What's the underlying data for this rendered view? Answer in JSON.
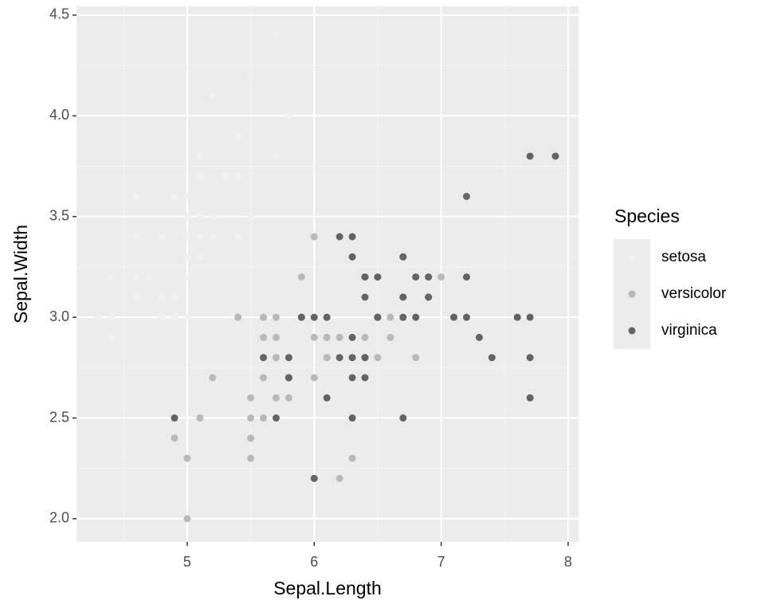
{
  "chart_data": {
    "type": "scatter",
    "x_label": "Sepal.Length",
    "y_label": "Sepal.Width",
    "legend_title": "Species",
    "legend_position": "right",
    "grid": true,
    "xlim": [
      4.128,
      8.082
    ],
    "ylim": [
      1.885,
      4.5435
    ],
    "xticks": [
      5,
      6,
      7,
      8
    ],
    "yticks": [
      {
        "value": 2,
        "label": "2.0"
      },
      2.5,
      {
        "value": 3,
        "label": "3.0"
      },
      3.5,
      {
        "value": 4,
        "label": "4.0"
      },
      4.5
    ],
    "series": [
      {
        "name": "setosa",
        "color": "#f0f0f0",
        "x": [
          5.1,
          4.9,
          4.7,
          4.6,
          5.0,
          5.4,
          4.6,
          5.0,
          4.4,
          4.9,
          5.4,
          4.8,
          4.8,
          4.3,
          5.8,
          5.7,
          5.4,
          5.1,
          5.7,
          5.1,
          5.4,
          5.1,
          4.6,
          5.1,
          4.8,
          5.0,
          5.0,
          5.2,
          5.2,
          4.7,
          4.8,
          5.4,
          5.2,
          5.5,
          4.9,
          5.0,
          5.5,
          4.9,
          4.4,
          5.1,
          5.0,
          4.5,
          4.4,
          5.0,
          5.1,
          4.8,
          5.1,
          4.6,
          5.3,
          5.0
        ],
        "values": [
          3.5,
          3.0,
          3.2,
          3.1,
          3.6,
          3.9,
          3.4,
          3.4,
          2.9,
          3.1,
          3.7,
          3.4,
          3.0,
          3.0,
          4.0,
          4.4,
          3.9,
          3.5,
          3.8,
          3.8,
          3.4,
          3.7,
          3.6,
          3.3,
          3.4,
          3.0,
          3.4,
          3.5,
          3.4,
          3.2,
          3.1,
          3.4,
          4.1,
          4.2,
          3.1,
          3.2,
          3.5,
          3.6,
          3.0,
          3.4,
          3.5,
          2.3,
          3.2,
          3.5,
          3.8,
          3.0,
          3.8,
          3.2,
          3.7,
          3.3
        ]
      },
      {
        "name": "versicolor",
        "color": "#b8b8b8",
        "x": [
          7.0,
          6.4,
          6.9,
          5.5,
          6.5,
          5.7,
          6.3,
          4.9,
          6.6,
          5.2,
          5.0,
          5.9,
          6.0,
          6.1,
          5.6,
          6.7,
          5.6,
          5.8,
          6.2,
          5.6,
          5.9,
          6.1,
          6.3,
          6.1,
          6.4,
          6.6,
          6.8,
          6.7,
          6.0,
          5.7,
          5.5,
          5.5,
          5.8,
          6.0,
          5.4,
          6.0,
          6.7,
          6.3,
          5.6,
          5.5,
          5.5,
          6.1,
          5.8,
          5.0,
          5.6,
          5.7,
          5.7,
          6.2,
          5.1,
          5.7
        ],
        "values": [
          3.2,
          3.2,
          3.1,
          2.3,
          2.8,
          2.8,
          3.3,
          2.4,
          2.9,
          2.7,
          2.0,
          3.0,
          2.2,
          2.9,
          2.9,
          3.1,
          3.0,
          2.7,
          2.2,
          2.5,
          3.2,
          2.8,
          2.5,
          2.8,
          2.9,
          3.0,
          2.8,
          3.0,
          2.9,
          2.6,
          2.4,
          2.4,
          2.7,
          2.7,
          3.0,
          3.4,
          3.1,
          2.3,
          3.0,
          2.5,
          2.6,
          3.0,
          2.6,
          2.3,
          2.7,
          3.0,
          2.9,
          2.9,
          2.5,
          2.8
        ]
      },
      {
        "name": "virginica",
        "color": "#636363",
        "x": [
          6.3,
          5.8,
          7.1,
          6.3,
          6.5,
          7.6,
          4.9,
          7.3,
          6.7,
          7.2,
          6.5,
          6.4,
          6.8,
          5.7,
          5.8,
          6.4,
          6.5,
          7.7,
          7.7,
          6.0,
          6.9,
          5.6,
          7.7,
          6.3,
          6.7,
          7.2,
          6.2,
          6.1,
          6.4,
          7.2,
          7.4,
          7.9,
          6.4,
          6.3,
          6.1,
          7.7,
          6.3,
          6.4,
          6.0,
          6.9,
          6.7,
          6.9,
          5.8,
          6.8,
          6.7,
          6.7,
          6.3,
          6.5,
          6.2,
          5.9
        ],
        "values": [
          3.3,
          2.7,
          3.0,
          2.9,
          3.0,
          3.0,
          2.5,
          2.9,
          2.5,
          3.6,
          3.2,
          2.7,
          3.0,
          2.5,
          2.8,
          3.2,
          3.0,
          3.8,
          2.6,
          2.2,
          3.2,
          2.8,
          2.8,
          2.7,
          3.3,
          3.2,
          2.8,
          3.0,
          2.8,
          3.0,
          2.8,
          3.8,
          2.8,
          2.8,
          2.6,
          3.0,
          3.4,
          3.1,
          3.0,
          3.1,
          3.1,
          3.1,
          2.7,
          3.2,
          3.3,
          3.0,
          2.5,
          3.0,
          3.4,
          3.0
        ]
      }
    ]
  }
}
